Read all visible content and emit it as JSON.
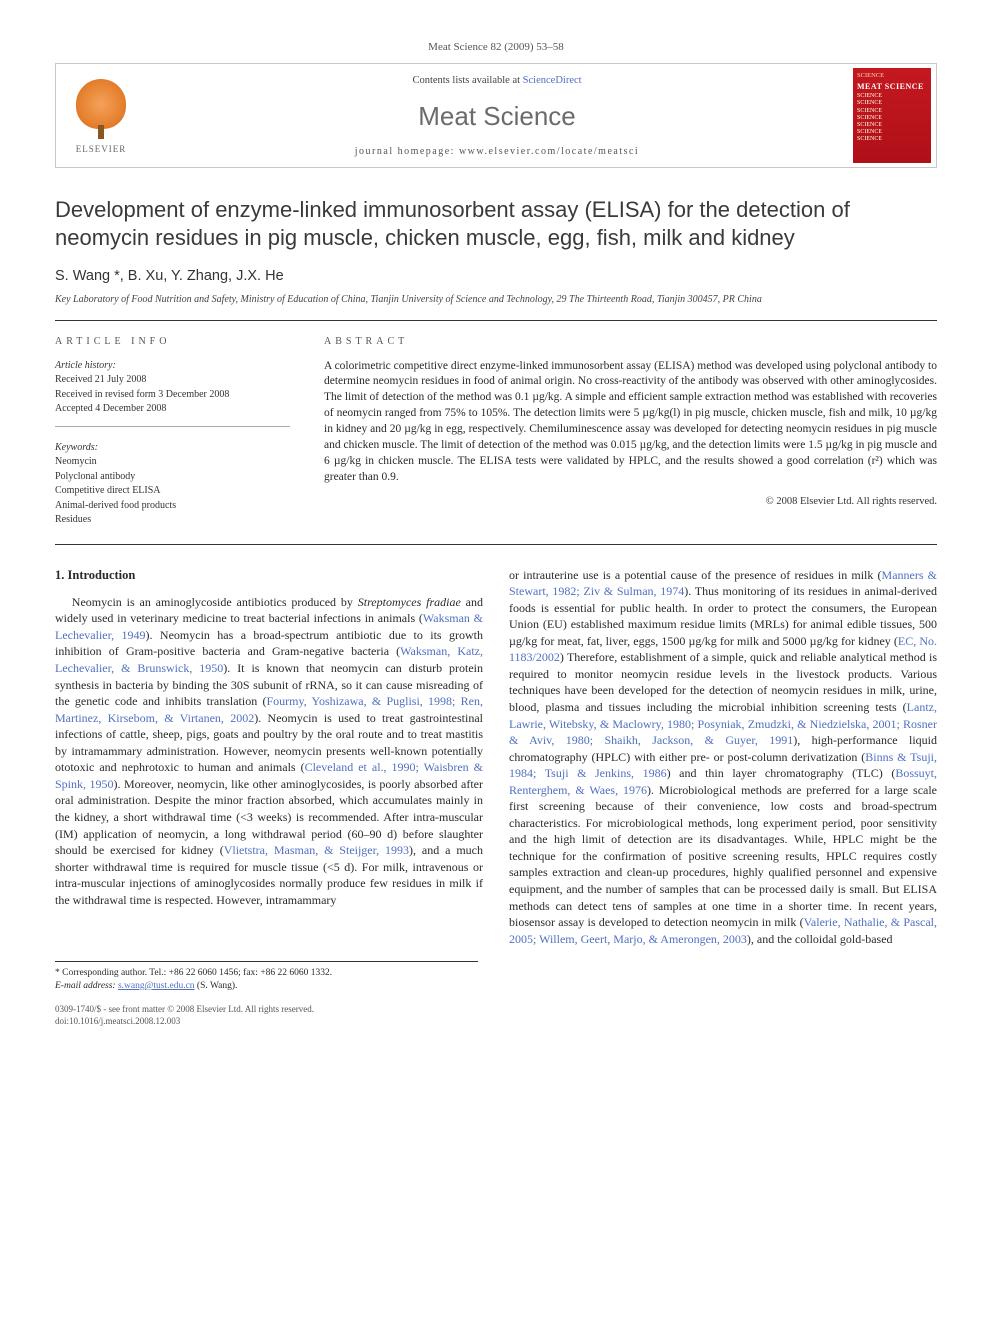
{
  "journal_ref": "Meat Science 82 (2009) 53–58",
  "header": {
    "publisher_name": "ELSEVIER",
    "contents_prefix": "Contents lists available at ",
    "contents_link": "ScienceDirect",
    "journal_title": "Meat Science",
    "homepage_label": "journal homepage: www.elsevier.com/locate/meatsci",
    "cover_top": "SCIENCE",
    "cover_title": "MEAT SCIENCE"
  },
  "article": {
    "title": "Development of enzyme-linked immunosorbent assay (ELISA) for the detection of neomycin residues in pig muscle, chicken muscle, egg, fish, milk and kidney",
    "authors": "S. Wang *, B. Xu, Y. Zhang, J.X. He",
    "affiliation": "Key Laboratory of Food Nutrition and Safety, Ministry of Education of China, Tianjin University of Science and Technology, 29 The Thirteenth Road, Tianjin 300457, PR China"
  },
  "info": {
    "label": "ARTICLE INFO",
    "history_label": "Article history:",
    "received": "Received 21 July 2008",
    "revised": "Received in revised form 3 December 2008",
    "accepted": "Accepted 4 December 2008",
    "keywords_label": "Keywords:",
    "keywords": [
      "Neomycin",
      "Polyclonal antibody",
      "Competitive direct ELISA",
      "Animal-derived food products",
      "Residues"
    ]
  },
  "abstract": {
    "label": "ABSTRACT",
    "text": "A colorimetric competitive direct enzyme-linked immunosorbent assay (ELISA) method was developed using polyclonal antibody to determine neomycin residues in food of animal origin. No cross-reactivity of the antibody was observed with other aminoglycosides. The limit of detection of the method was 0.1 µg/kg. A simple and efficient sample extraction method was established with recoveries of neomycin ranged from 75% to 105%. The detection limits were 5 µg/kg(l) in pig muscle, chicken muscle, fish and milk, 10 µg/kg in kidney and 20 µg/kg in egg, respectively. Chemiluminescence assay was developed for detecting neomycin residues in pig muscle and chicken muscle. The limit of detection of the method was 0.015 µg/kg, and the detection limits were 1.5 µg/kg in pig muscle and 6 µg/kg in chicken muscle. The ELISA tests were validated by HPLC, and the results showed a good correlation (r²) which was greater than 0.9.",
    "copyright": "© 2008 Elsevier Ltd. All rights reserved."
  },
  "body": {
    "heading": "1. Introduction",
    "left_html": "Neomycin is an aminoglycoside antibiotics produced by <span class=\"ital\">Streptomyces fradiae</span> and widely used in veterinary medicine to treat bacterial infections in animals (<span class=\"cite\">Waksman & Lechevalier, 1949</span>). Neomycin has a broad-spectrum antibiotic due to its growth inhibition of Gram-positive bacteria and Gram-negative bacteria (<span class=\"cite\">Waksman, Katz, Lechevalier, & Brunswick, 1950</span>). It is known that neomycin can disturb protein synthesis in bacteria by binding the 30S subunit of rRNA, so it can cause misreading of the genetic code and inhibits translation (<span class=\"cite\">Fourmy, Yoshizawa, & Puglisi, 1998; Ren, Martinez, Kirsebom, & Virtanen, 2002</span>). Neomycin is used to treat gastrointestinal infections of cattle, sheep, pigs, goats and poultry by the oral route and to treat mastitis by intramammary administration. However, neomycin presents well-known potentially ototoxic and nephrotoxic to human and animals (<span class=\"cite\">Cleveland et al., 1990; Waisbren & Spink, 1950</span>). Moreover, neomycin, like other aminoglycosides, is poorly absorbed after oral administration. Despite the minor fraction absorbed, which accumulates mainly in the kidney, a short withdrawal time (<3 weeks) is recommended. After intra-muscular (IM) application of neomycin, a long withdrawal period (60–90 d) before slaughter should be exercised for kidney (<span class=\"cite\">Vlietstra, Masman, & Steijger, 1993</span>), and a much shorter withdrawal time is required for muscle tissue (<5 d). For milk, intravenous or intra-muscular injections of aminoglycosides normally produce few residues in milk if the withdrawal time is respected. However, intramammary",
    "right_html": "or intrauterine use is a potential cause of the presence of residues in milk (<span class=\"cite\">Manners & Stewart, 1982; Ziv & Sulman, 1974</span>). Thus monitoring of its residues in animal-derived foods is essential for public health. In order to protect the consumers, the European Union (EU) established maximum residue limits (MRLs) for animal edible tissues, 500 µg/kg for meat, fat, liver, eggs, 1500 µg/kg for milk and 5000 µg/kg for kidney (<span class=\"cite\">EC, No. 1183/2002</span>) Therefore, establishment of a simple, quick and reliable analytical method is required to monitor neomycin residue levels in the livestock products. Various techniques have been developed for the detection of neomycin residues in milk, urine, blood, plasma and tissues including the microbial inhibition screening tests (<span class=\"cite\">Lantz, Lawrie, Witebsky, & Maclowry, 1980; Posyniak, Zmudzki, & Niedzielska, 2001; Rosner & Aviv, 1980; Shaikh, Jackson, & Guyer, 1991</span>), high-performance liquid chromatography (HPLC) with either pre- or post-column derivatization (<span class=\"cite\">Binns & Tsuji, 1984; Tsuji & Jenkins, 1986</span>) and thin layer chromatography (TLC) (<span class=\"cite\">Bossuyt, Renterghem, & Waes, 1976</span>). Microbiological methods are preferred for a large scale first screening because of their convenience, low costs and broad-spectrum characteristics. For microbiological methods, long experiment period, poor sensitivity and the high limit of detection are its disadvantages. While, HPLC might be the technique for the confirmation of positive screening results, HPLC requires costly samples extraction and clean-up procedures, highly qualified personnel and expensive equipment, and the number of samples that can be processed daily is small. But ELISA methods can detect tens of samples at one time in a shorter time. In recent years, biosensor assay is developed to detection neomycin in milk (<span class=\"cite\">Valerie, Nathalie, & Pascal, 2005; Willem, Geert, Marjo, & Amerongen, 2003</span>), and the colloidal gold-based"
  },
  "footnotes": {
    "corr": "* Corresponding author. Tel.: +86 22 6060 1456; fax: +86 22 6060 1332.",
    "email_label": "E-mail address:",
    "email": "s.wang@tust.edu.cn",
    "email_who": "(S. Wang)."
  },
  "bottom": {
    "left1": "0309-1740/$ - see front matter © 2008 Elsevier Ltd. All rights reserved.",
    "left2": "doi:10.1016/j.meatsci.2008.12.003"
  },
  "colors": {
    "link": "#5070c0",
    "cover_bg": "#c41820",
    "elsevier_orange": "#e58230",
    "rule": "#333333"
  }
}
